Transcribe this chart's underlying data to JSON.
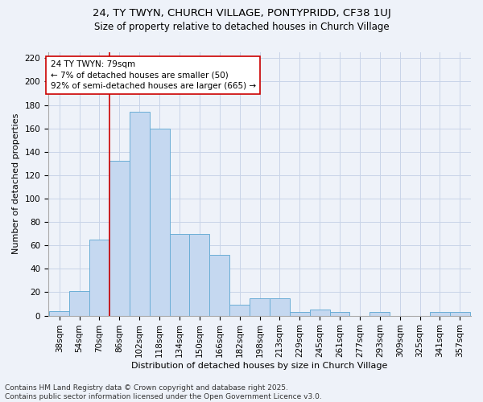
{
  "title_line1": "24, TY TWYN, CHURCH VILLAGE, PONTYPRIDD, CF38 1UJ",
  "title_line2": "Size of property relative to detached houses in Church Village",
  "xlabel": "Distribution of detached houses by size in Church Village",
  "ylabel": "Number of detached properties",
  "categories": [
    "38sqm",
    "54sqm",
    "70sqm",
    "86sqm",
    "102sqm",
    "118sqm",
    "134sqm",
    "150sqm",
    "166sqm",
    "182sqm",
    "198sqm",
    "213sqm",
    "229sqm",
    "245sqm",
    "261sqm",
    "277sqm",
    "293sqm",
    "309sqm",
    "325sqm",
    "341sqm",
    "357sqm"
  ],
  "values": [
    4,
    21,
    65,
    132,
    174,
    160,
    70,
    70,
    52,
    9,
    15,
    15,
    3,
    5,
    3,
    0,
    3,
    0,
    0,
    3,
    3
  ],
  "bar_color": "#c5d8f0",
  "bar_edge_color": "#6baed6",
  "grid_color": "#c8d4e8",
  "background_color": "#eef2f9",
  "vline_x_idx": 2.5,
  "vline_color": "#cc0000",
  "annotation_line1": "24 TY TWYN: 79sqm",
  "annotation_line2": "← 7% of detached houses are smaller (50)",
  "annotation_line3": "92% of semi-detached houses are larger (665) →",
  "annotation_box_color": "#ffffff",
  "annotation_box_edge": "#cc0000",
  "ylim": [
    0,
    225
  ],
  "yticks": [
    0,
    20,
    40,
    60,
    80,
    100,
    120,
    140,
    160,
    180,
    200,
    220
  ],
  "footer_text": "Contains HM Land Registry data © Crown copyright and database right 2025.\nContains public sector information licensed under the Open Government Licence v3.0.",
  "title_fontsize": 9.5,
  "subtitle_fontsize": 8.5,
  "axis_label_fontsize": 8,
  "tick_fontsize": 7.5,
  "annotation_fontsize": 7.5,
  "footer_fontsize": 6.5
}
